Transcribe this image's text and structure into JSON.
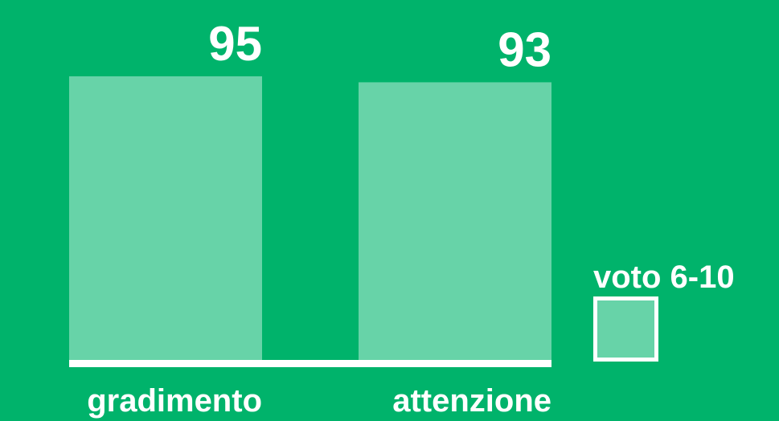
{
  "chart_data": {
    "type": "bar",
    "categories": [
      "gradimento",
      "attenzione"
    ],
    "series": [
      {
        "name": "voto 6-10",
        "color": "#67d3a8",
        "values": [
          95,
          93
        ]
      }
    ],
    "background": "#00b36b"
  }
}
